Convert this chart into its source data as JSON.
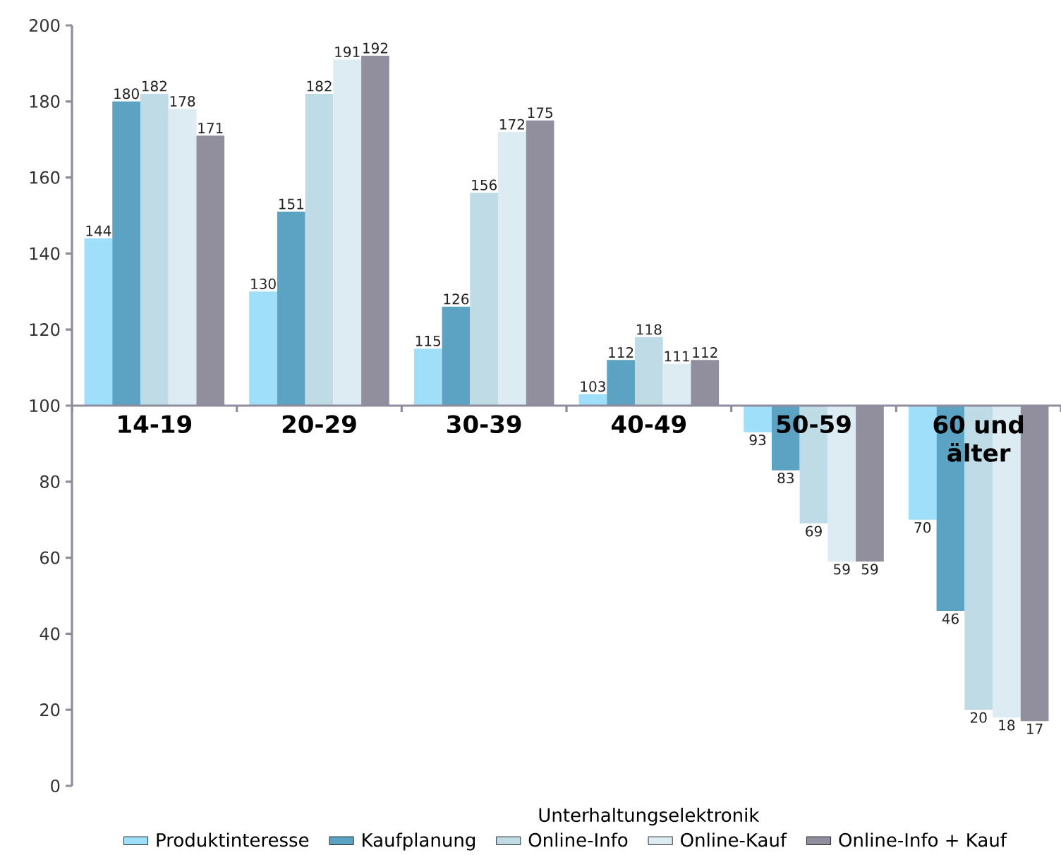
{
  "chart_data": {
    "type": "bar",
    "xlabel": "Unterhaltungselektronik",
    "categories": [
      "14-19",
      "20-29",
      "30-39",
      "40-49",
      "50-59",
      "60 und älter"
    ],
    "series": [
      {
        "name": "Produktinteresse",
        "color": "#a0dffa",
        "base": [
          100,
          100,
          100,
          100,
          100,
          100
        ],
        "values": [
          44,
          30,
          15,
          3,
          -7,
          -30
        ],
        "value_labels": [
          "144",
          "130",
          "115",
          "103",
          "93",
          "70"
        ]
      },
      {
        "name": "Kaufplanung",
        "color": "#5ca3c3",
        "base": [
          100,
          100,
          100,
          100,
          100,
          100
        ],
        "values": [
          80,
          51,
          26,
          12,
          -17,
          -54
        ],
        "value_labels": [
          "180",
          "151",
          "126",
          "112",
          "83",
          "46"
        ]
      },
      {
        "name": "Online-Info",
        "color": "#bfdbe6",
        "base": [
          100,
          100,
          100,
          100,
          100,
          100
        ],
        "values": [
          82,
          82,
          56,
          18,
          -31,
          -80
        ],
        "value_labels": [
          "182",
          "182",
          "156",
          "118",
          "69",
          "20"
        ]
      },
      {
        "name": "Online-Kauf",
        "color": "#ddebf3",
        "base": [
          100,
          100,
          100,
          100,
          100,
          100
        ],
        "values": [
          78,
          91,
          72,
          11,
          -41,
          -82
        ],
        "value_labels": [
          "178",
          "191",
          "172",
          "111",
          "59",
          "18"
        ]
      },
      {
        "name": "Online-Info + Kauf",
        "color": "#918f9e",
        "base": [
          100,
          100,
          100,
          100,
          100,
          100
        ],
        "values": [
          71,
          92,
          75,
          12,
          -41,
          -83
        ],
        "value_labels": [
          "171",
          "192",
          "175",
          "112",
          "59",
          "17"
        ]
      }
    ],
    "ylim": [
      0,
      200
    ],
    "yticks": [
      0,
      20,
      40,
      60,
      80,
      100,
      120,
      140,
      160,
      180,
      200
    ],
    "legend": "bottom"
  }
}
